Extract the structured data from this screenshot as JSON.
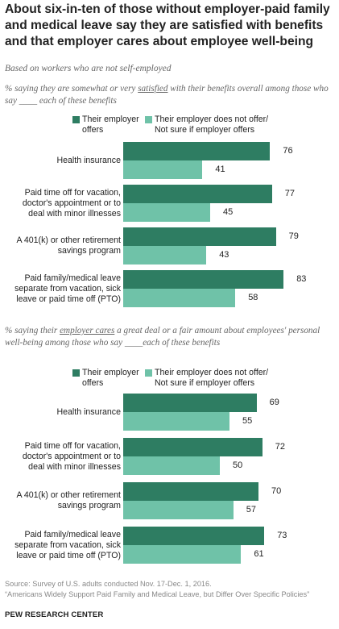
{
  "title": "About six-in-ten of those without employer-paid family and medical leave say they are satisfied with benefits and that employer cares about employee well-being",
  "subtitle": "Based on workers who are not self-employed",
  "colors": {
    "offers": "#2e7d62",
    "not_offer": "#6fc2a8"
  },
  "legend": {
    "offers": "Their employer offers",
    "offers_line1": "Their employer",
    "offers_line2": "offers",
    "not_offer": "Their employer does not offer/ Not sure if employer offers",
    "not_offer_line1": "Their employer does not offer/",
    "not_offer_line2": "Not sure if employer offers"
  },
  "sections": [
    {
      "label_pre": "% saying they are somewhat or very ",
      "label_em": "satisfied",
      "label_post": " with their benefits overall among those who say ____ each of these benefits"
    },
    {
      "label_pre": "% saying their ",
      "label_em": "employer cares",
      "label_post": " a great deal or a fair amount about employees' personal well-being among those who say ____each of these benefits"
    }
  ],
  "categories_lines": [
    [
      "Health insurance"
    ],
    [
      "Paid time off for vacation,",
      "doctor's appointment or to",
      "deal with minor illnesses"
    ],
    [
      "A 401(k) or other retirement",
      "savings program"
    ],
    [
      "Paid family/medical leave",
      "separate from vacation, sick",
      "leave or paid time off (PTO)"
    ]
  ],
  "chart_data": [
    {
      "type": "bar",
      "orientation": "horizontal",
      "title": "% saying they are somewhat or very satisfied with their benefits overall among those who say ____ each of these benefits",
      "categories": [
        "Health insurance",
        "Paid time off for vacation, doctor's appointment or to deal with minor illnesses",
        "A 401(k) or other retirement savings program",
        "Paid family/medical leave separate from vacation, sick leave or paid time off (PTO)"
      ],
      "series": [
        {
          "name": "Their employer offers",
          "values": [
            76,
            77,
            79,
            83
          ]
        },
        {
          "name": "Their employer does not offer/ Not sure if employer offers",
          "values": [
            41,
            45,
            43,
            58
          ]
        }
      ],
      "xlim": [
        0,
        100
      ],
      "grid": false,
      "legend": "top"
    },
    {
      "type": "bar",
      "orientation": "horizontal",
      "title": "% saying their employer cares a great deal or a fair amount about employees' personal well-being among those who say ____each of these benefits",
      "categories": [
        "Health insurance",
        "Paid time off for vacation, doctor's appointment or to deal with minor illnesses",
        "A 401(k) or other retirement savings program",
        "Paid family/medical leave separate from vacation, sick leave or paid time off (PTO)"
      ],
      "series": [
        {
          "name": "Their employer offers",
          "values": [
            69,
            72,
            70,
            73
          ]
        },
        {
          "name": "Their employer does not offer/ Not sure if employer offers",
          "values": [
            55,
            50,
            57,
            61
          ]
        }
      ],
      "xlim": [
        0,
        100
      ],
      "grid": false,
      "legend": "top"
    }
  ],
  "footer": {
    "source": "Source: Survey of U.S. adults conducted Nov. 17-Dec. 1, 2016.",
    "report": "“Americans Widely Support Paid Family and Medical Leave, but Differ Over Specific Policies”",
    "brand": "PEW RESEARCH CENTER"
  }
}
